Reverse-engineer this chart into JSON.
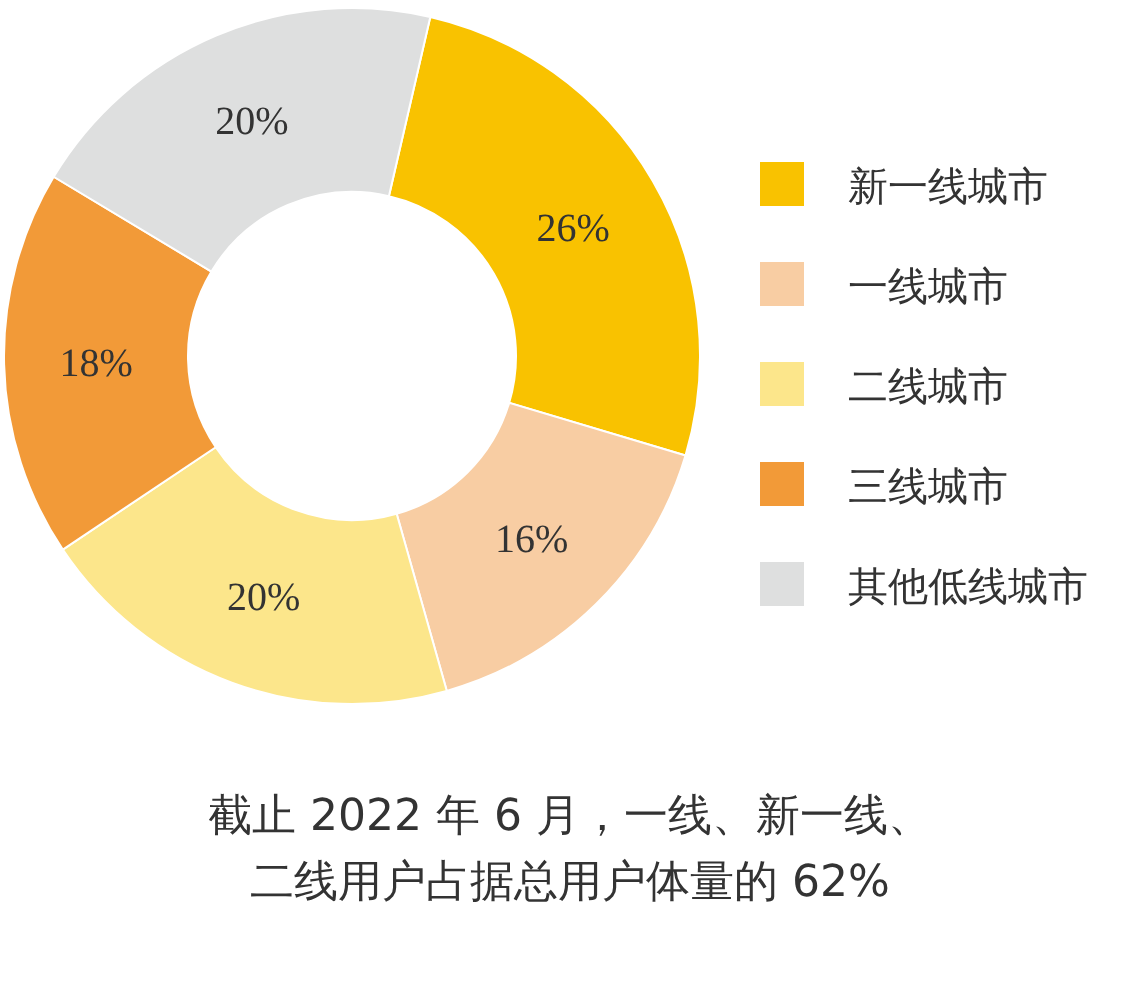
{
  "chart_data": {
    "type": "donut",
    "title": "截止 2022 年 6 月，一线、新一线、二线用户占据总用户体量的 62%",
    "categories": [
      "新一线城市",
      "一线城市",
      "二线城市",
      "三线城市",
      "其他低线城市"
    ],
    "values": [
      26,
      16,
      20,
      18,
      20
    ],
    "colors": [
      "#f9c200",
      "#f8cda3",
      "#fce68b",
      "#f29a38",
      "#dedfdf"
    ],
    "value_labels": [
      "26%",
      "16%",
      "20%",
      "18%",
      "20%"
    ],
    "legend": "right"
  }
}
